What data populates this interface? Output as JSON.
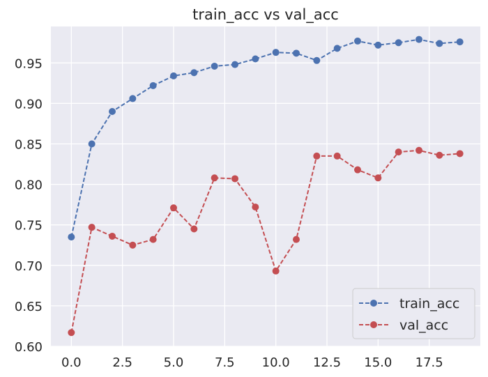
{
  "chart_data": {
    "type": "line",
    "title": "train_acc vs val_acc",
    "xlabel": "",
    "ylabel": "",
    "x": [
      0,
      1,
      2,
      3,
      4,
      5,
      6,
      7,
      8,
      9,
      10,
      11,
      12,
      13,
      14,
      15,
      16,
      17,
      18,
      19
    ],
    "xlim": [
      -1.0,
      20.0
    ],
    "ylim": [
      0.6,
      0.995
    ],
    "x_ticks": [
      0.0,
      2.5,
      5.0,
      7.5,
      10.0,
      12.5,
      15.0,
      17.5
    ],
    "x_tick_labels": [
      "0.0",
      "2.5",
      "5.0",
      "7.5",
      "10.0",
      "12.5",
      "15.0",
      "17.5"
    ],
    "y_ticks": [
      0.6,
      0.65,
      0.7,
      0.75,
      0.8,
      0.85,
      0.9,
      0.95
    ],
    "y_tick_labels": [
      "0.60",
      "0.65",
      "0.70",
      "0.75",
      "0.80",
      "0.85",
      "0.90",
      "0.95"
    ],
    "grid": true,
    "legend_position": "bottom-right",
    "background_color": "#eaeaf2",
    "series": [
      {
        "name": "train_acc",
        "color": "#4c72b0",
        "values": [
          0.735,
          0.85,
          0.89,
          0.906,
          0.922,
          0.934,
          0.938,
          0.946,
          0.948,
          0.955,
          0.963,
          0.962,
          0.953,
          0.968,
          0.977,
          0.972,
          0.975,
          0.979,
          0.974,
          0.976
        ]
      },
      {
        "name": "val_acc",
        "color": "#c44e52",
        "values": [
          0.617,
          0.747,
          0.736,
          0.725,
          0.732,
          0.771,
          0.745,
          0.808,
          0.807,
          0.772,
          0.693,
          0.732,
          0.835,
          0.835,
          0.818,
          0.808,
          0.84,
          0.842,
          0.836,
          0.838
        ]
      }
    ]
  }
}
